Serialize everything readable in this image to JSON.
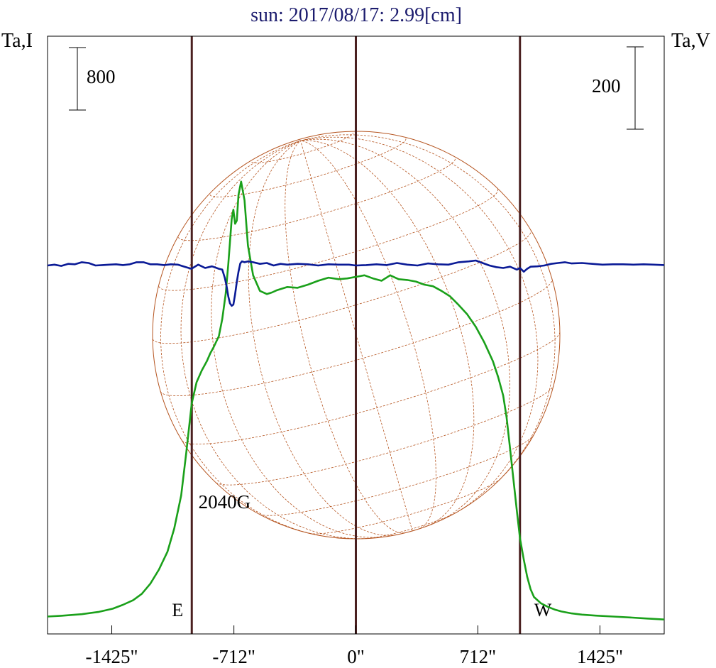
{
  "chart_data": {
    "type": "line",
    "title": "sun: 2017/08/17: 2.99[cm]",
    "left_axis_label": "Ta,I",
    "right_axis_label": "Ta,V",
    "left_scale_bar_label": "800",
    "right_scale_bar_label": "200",
    "left_scale_bar_value": 800,
    "right_scale_bar_value": 200,
    "x_range": [
      -1800,
      1800
    ],
    "x_ticks": [
      {
        "value": -1425,
        "label": "-1425\""
      },
      {
        "value": -712,
        "label": "-712\""
      },
      {
        "value": 0,
        "label": "0\""
      },
      {
        "value": 712,
        "label": "712\""
      },
      {
        "value": 1425,
        "label": "1425\""
      }
    ],
    "limb_markers": [
      {
        "value": -958,
        "label": "E"
      },
      {
        "value": 0,
        "label": ""
      },
      {
        "value": 958,
        "label": "W"
      }
    ],
    "annotations": [
      {
        "text": "2040G",
        "x": -712
      }
    ],
    "colors": {
      "title": "#1c1c6e",
      "stokes_i": "#1aa01a",
      "stokes_v": "#0a1a96",
      "markers": "#4a2020",
      "disk": "#b5541f",
      "frame": "#000000"
    },
    "series": [
      {
        "key": "I",
        "x": [
          -1800,
          -1720,
          -1600,
          -1500,
          -1420,
          -1360,
          -1300,
          -1250,
          -1200,
          -1150,
          -1100,
          -1060,
          -1020,
          -990,
          -958,
          -930,
          -900,
          -870,
          -850,
          -830,
          -800,
          -780,
          -760,
          -745,
          -735,
          -725,
          -715,
          -705,
          -695,
          -685,
          -670,
          -650,
          -630,
          -600,
          -560,
          -520,
          -490,
          -460,
          -400,
          -340,
          -280,
          -220,
          -160,
          -100,
          -50,
          0,
          50,
          100,
          150,
          200,
          250,
          300,
          350,
          400,
          450,
          500,
          550,
          600,
          650,
          700,
          750,
          800,
          830,
          860,
          880,
          900,
          920,
          940,
          958,
          980,
          1000,
          1020,
          1040,
          1080,
          1120,
          1160,
          1200,
          1260,
          1320,
          1400,
          1500,
          1600,
          1700,
          1800
        ],
        "y": [
          50,
          60,
          80,
          110,
          150,
          200,
          260,
          340,
          470,
          650,
          880,
          1180,
          1600,
          2150,
          2780,
          3050,
          3200,
          3320,
          3420,
          3500,
          3640,
          3860,
          4180,
          4560,
          4850,
          5140,
          5260,
          5080,
          5120,
          5450,
          5620,
          5380,
          4800,
          4420,
          4220,
          4180,
          4200,
          4230,
          4270,
          4260,
          4300,
          4350,
          4390,
          4370,
          4380,
          4400,
          4420,
          4380,
          4350,
          4420,
          4370,
          4360,
          4340,
          4300,
          4280,
          4220,
          4150,
          4040,
          3920,
          3760,
          3560,
          3320,
          3120,
          2880,
          2600,
          2200,
          1800,
          1400,
          1050,
          780,
          560,
          400,
          300,
          220,
          175,
          140,
          115,
          90,
          75,
          62,
          50,
          38,
          25,
          12
        ]
      },
      {
        "key": "V",
        "x": [
          -1800,
          -1760,
          -1720,
          -1680,
          -1640,
          -1600,
          -1560,
          -1520,
          -1480,
          -1440,
          -1400,
          -1360,
          -1320,
          -1280,
          -1240,
          -1200,
          -1160,
          -1120,
          -1080,
          -1040,
          -1000,
          -960,
          -920,
          -880,
          -840,
          -820,
          -800,
          -780,
          -765,
          -755,
          -745,
          -735,
          -725,
          -715,
          -705,
          -695,
          -685,
          -675,
          -665,
          -650,
          -630,
          -600,
          -560,
          -520,
          -480,
          -440,
          -400,
          -340,
          -280,
          -220,
          -160,
          -100,
          -40,
          0,
          60,
          120,
          180,
          240,
          300,
          360,
          420,
          480,
          540,
          600,
          660,
          700,
          740,
          780,
          820,
          860,
          900,
          940,
          958,
          980,
          1000,
          1020,
          1060,
          1100,
          1140,
          1180,
          1220,
          1260,
          1320,
          1380,
          1440,
          1500,
          1560,
          1620,
          1680,
          1740,
          1800
        ],
        "y": [
          0,
          2,
          -1,
          4,
          3,
          8,
          6,
          0,
          1,
          2,
          3,
          1,
          3,
          8,
          8,
          3,
          3,
          1,
          3,
          2,
          -3,
          -8,
          2,
          -6,
          -2,
          -5,
          -8,
          -10,
          -30,
          -50,
          -75,
          -92,
          -98,
          -95,
          -70,
          -40,
          -15,
          5,
          10,
          8,
          10,
          8,
          4,
          6,
          0,
          4,
          2,
          4,
          3,
          0,
          3,
          2,
          2,
          0,
          1,
          3,
          1,
          6,
          2,
          0,
          5,
          3,
          2,
          8,
          10,
          12,
          6,
          0,
          -4,
          -6,
          -3,
          -10,
          -6,
          -15,
          -8,
          -3,
          -2,
          0,
          4,
          6,
          8,
          5,
          6,
          4,
          2,
          3,
          3,
          2,
          3,
          2,
          1
        ]
      }
    ]
  }
}
